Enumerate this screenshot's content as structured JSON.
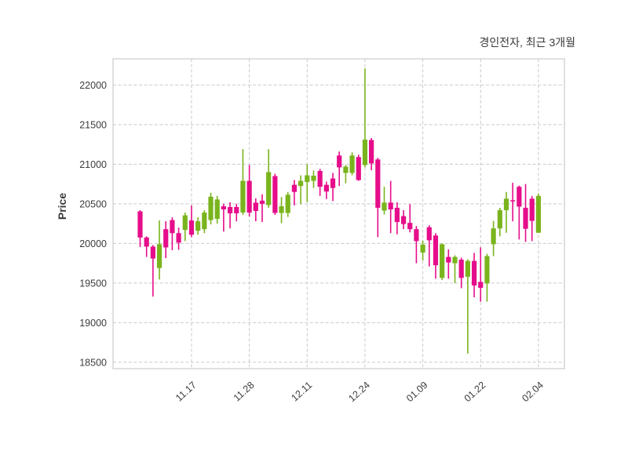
{
  "title": "경인전자, 최근 3개월",
  "chart_data": {
    "type": "candlestick",
    "title": "경인전자, 최근 3개월",
    "xlabel": "",
    "ylabel": "Price",
    "grid": true,
    "legend": "none",
    "up_color": "#7ab41d",
    "down_color": "#e60d8a",
    "grid_color": "#c9c9c9",
    "spine_color": "#cccccc",
    "tick_label_color": "#3c3c3c",
    "y_ticks": [
      18500,
      19000,
      19500,
      20000,
      20500,
      21000,
      21500,
      22000
    ],
    "ylim": [
      18420,
      22330
    ],
    "x_tick_labels": [
      "11.17",
      "11.28",
      "12.11",
      "12.24",
      "01.09",
      "01.22",
      "02.04"
    ],
    "x_tick_indices": [
      8,
      17,
      26,
      35,
      44,
      53,
      62
    ],
    "candles_format": [
      "open",
      "high",
      "low",
      "close"
    ],
    "candles": [
      [
        20405,
        20420,
        19955,
        20075
      ],
      [
        20075,
        20090,
        19830,
        19960
      ],
      [
        19960,
        19980,
        19330,
        19810
      ],
      [
        19690,
        20290,
        19545,
        19990
      ],
      [
        20180,
        20280,
        19815,
        19950
      ],
      [
        20295,
        20330,
        19915,
        20130
      ],
      [
        20130,
        20200,
        19920,
        20010
      ],
      [
        20170,
        20390,
        20030,
        20355
      ],
      [
        20290,
        20480,
        20080,
        20110
      ],
      [
        20160,
        20330,
        20110,
        20280
      ],
      [
        20180,
        20420,
        20130,
        20390
      ],
      [
        20295,
        20640,
        20240,
        20590
      ],
      [
        20310,
        20600,
        20250,
        20555
      ],
      [
        20470,
        20500,
        20150,
        20430
      ],
      [
        20460,
        20520,
        20190,
        20380
      ],
      [
        20460,
        20500,
        20280,
        20380
      ],
      [
        20390,
        21190,
        20360,
        20790
      ],
      [
        20790,
        20990,
        20340,
        20390
      ],
      [
        20515,
        20570,
        20280,
        20410
      ],
      [
        20540,
        20620,
        20270,
        20500
      ],
      [
        20485,
        21190,
        20450,
        20900
      ],
      [
        20850,
        20880,
        20360,
        20385
      ],
      [
        20385,
        20585,
        20255,
        20470
      ],
      [
        20385,
        20650,
        20335,
        20615
      ],
      [
        20740,
        20800,
        20480,
        20650
      ],
      [
        20725,
        20860,
        20495,
        20790
      ],
      [
        20775,
        21000,
        20520,
        20860
      ],
      [
        20790,
        20920,
        20700,
        20855
      ],
      [
        20915,
        20940,
        20600,
        20715
      ],
      [
        20740,
        20780,
        20560,
        20655
      ],
      [
        20820,
        20890,
        20535,
        20700
      ],
      [
        21110,
        21160,
        20725,
        20960
      ],
      [
        20890,
        20990,
        20760,
        20970
      ],
      [
        20890,
        21150,
        20860,
        21110
      ],
      [
        21090,
        21120,
        20790,
        20800
      ],
      [
        20990,
        22210,
        20960,
        21310
      ],
      [
        21305,
        21330,
        20925,
        21010
      ],
      [
        21060,
        21080,
        20080,
        20450
      ],
      [
        20415,
        20715,
        20365,
        20515
      ],
      [
        20515,
        20790,
        20130,
        20430
      ],
      [
        20450,
        20520,
        20115,
        20270
      ],
      [
        20345,
        20420,
        20180,
        20245
      ],
      [
        20260,
        20495,
        20140,
        20180
      ],
      [
        20180,
        20220,
        19750,
        20030
      ],
      [
        19885,
        20035,
        19785,
        19985
      ],
      [
        20205,
        20230,
        19710,
        20040
      ],
      [
        20100,
        20130,
        19555,
        19725
      ],
      [
        19565,
        20000,
        19540,
        19990
      ],
      [
        19830,
        19925,
        19555,
        19760
      ],
      [
        19750,
        19850,
        19500,
        19830
      ],
      [
        19795,
        19820,
        19435,
        19565
      ],
      [
        19580,
        19800,
        18610,
        19780
      ],
      [
        19780,
        19880,
        19320,
        19470
      ],
      [
        19515,
        19950,
        19265,
        19440
      ],
      [
        19495,
        19870,
        19265,
        19840
      ],
      [
        19990,
        20285,
        19840,
        20190
      ],
      [
        20190,
        20450,
        20090,
        20420
      ],
      [
        20420,
        20650,
        20135,
        20565
      ],
      [
        20545,
        20765,
        20280,
        20530
      ],
      [
        20715,
        20730,
        20050,
        20465
      ],
      [
        20450,
        20750,
        20020,
        20185
      ],
      [
        20565,
        20600,
        20030,
        20285
      ],
      [
        20135,
        20630,
        20135,
        20600
      ]
    ]
  }
}
